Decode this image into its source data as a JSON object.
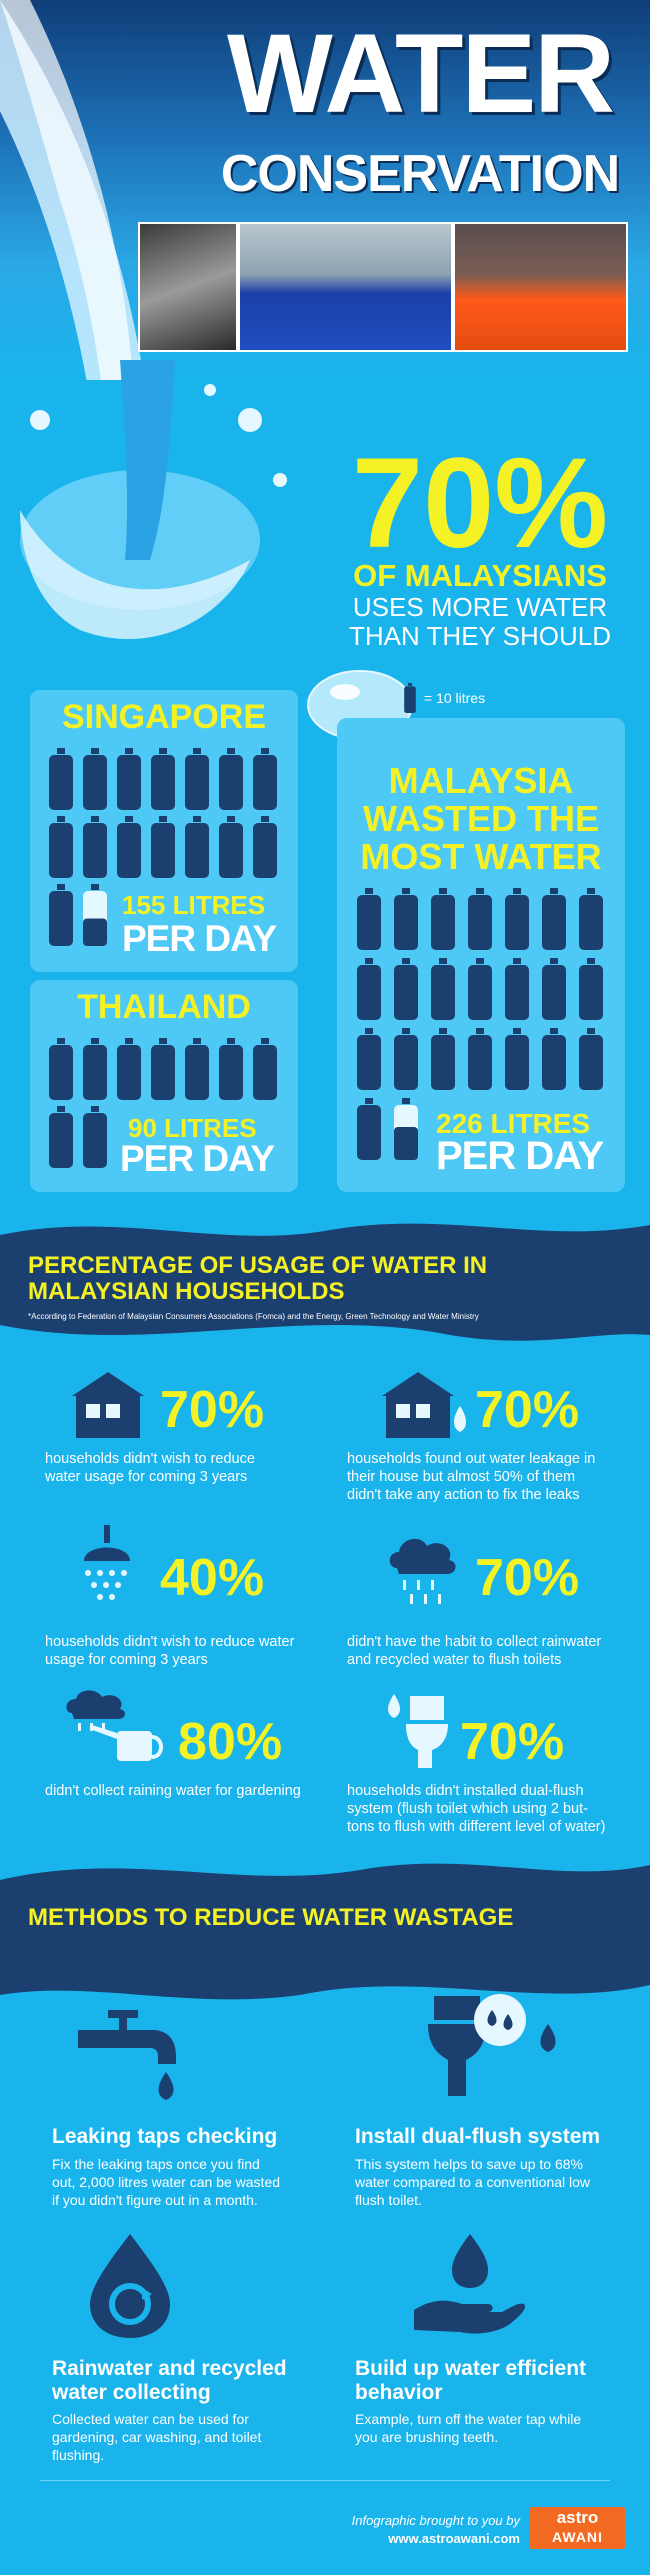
{
  "header": {
    "title": "WATER",
    "subtitle": "CONSERVATION"
  },
  "headline": {
    "percent": "70%",
    "line1": "OF MALAYSIANS",
    "line2a": "USES MORE WATER",
    "line2b": "THAN THEY SHOULD"
  },
  "legend": {
    "label": "= 10 litres",
    "icon": "water-bottle-icon"
  },
  "countries": {
    "singapore": {
      "name": "SINGAPORE",
      "litres": "155 LITRES",
      "perday": "PER DAY",
      "bottles": 15.5
    },
    "thailand": {
      "name": "THAILAND",
      "litres": "90 LITRES",
      "perday": "PER DAY",
      "bottles": 9
    },
    "malaysia": {
      "name1": "MALAYSIA",
      "name2": "WASTED THE",
      "name3": "MOST WATER",
      "litres": "226 LITRES",
      "perday": "PER DAY",
      "bottles": 22.6
    }
  },
  "usage": {
    "title1": "PERCENTAGE OF USAGE OF WATER IN",
    "title2": "MALAYSIAN HOUSEHOLDS",
    "footnote": "*According to Federation of Malaysian Consumers Associations (Fomca) and the Energy, Green Technology and Water Ministry",
    "stats": [
      {
        "pct": "70%",
        "icon": "house-icon",
        "lines": [
          "households didn't wish to reduce",
          "water usage for coming 3 years"
        ]
      },
      {
        "pct": "70%",
        "icon": "house-leak-icon",
        "lines": [
          "households found out water leakage in",
          "their house but almost 50% of them",
          "didn't take any action to fix the leaks"
        ]
      },
      {
        "pct": "40%",
        "icon": "shower-icon",
        "lines": [
          "households didn't wish to reduce water",
          "usage for coming 3 years"
        ]
      },
      {
        "pct": "70%",
        "icon": "rain-cloud-icon",
        "lines": [
          "didn't have the habit to collect rainwater",
          "and recycled water to flush toilets"
        ]
      },
      {
        "pct": "80%",
        "icon": "watering-can-icon",
        "lines": [
          "didn't collect raining water for gardening"
        ]
      },
      {
        "pct": "70%",
        "icon": "toilet-icon",
        "lines": [
          "households didn't installed dual-flush",
          "system (flush toilet which using 2 but-",
          "tons to flush with different level of water)"
        ]
      }
    ]
  },
  "methods": {
    "title": "METHODS TO REDUCE WATER WASTAGE",
    "items": [
      {
        "icon": "tap-icon",
        "title": [
          "Leaking taps checking"
        ],
        "lines": [
          "Fix the leaking taps once you find",
          "out, 2,000 litres water can be wasted",
          "if you didn't figure out in a month."
        ]
      },
      {
        "icon": "dual-flush-toilet-icon",
        "title": [
          "Install dual-flush system"
        ],
        "lines": [
          "This system helps to save up to 68%",
          "water compared to a conventional low",
          "flush toilet."
        ]
      },
      {
        "icon": "recycle-drop-icon",
        "title": [
          "Rainwater and recycled",
          "water collecting"
        ],
        "lines": [
          "Collected water can be used for",
          "gardening, car washing, and toilet",
          "flushing."
        ]
      },
      {
        "icon": "hand-drop-icon",
        "title": [
          "Build up water efficient",
          "behavior"
        ],
        "lines": [
          "Example, turn off the water tap while",
          "you are brushing teeth."
        ]
      }
    ]
  },
  "credit": {
    "line1": "Infographic brought to you by",
    "url": "www.astroawani.com",
    "logo1": "astro",
    "logo2": "AWANI"
  },
  "colors": {
    "accent": "#f4f224",
    "background": "#1ab4ec",
    "dark": "#1b3f6e",
    "panel": "#4ec9f5"
  }
}
